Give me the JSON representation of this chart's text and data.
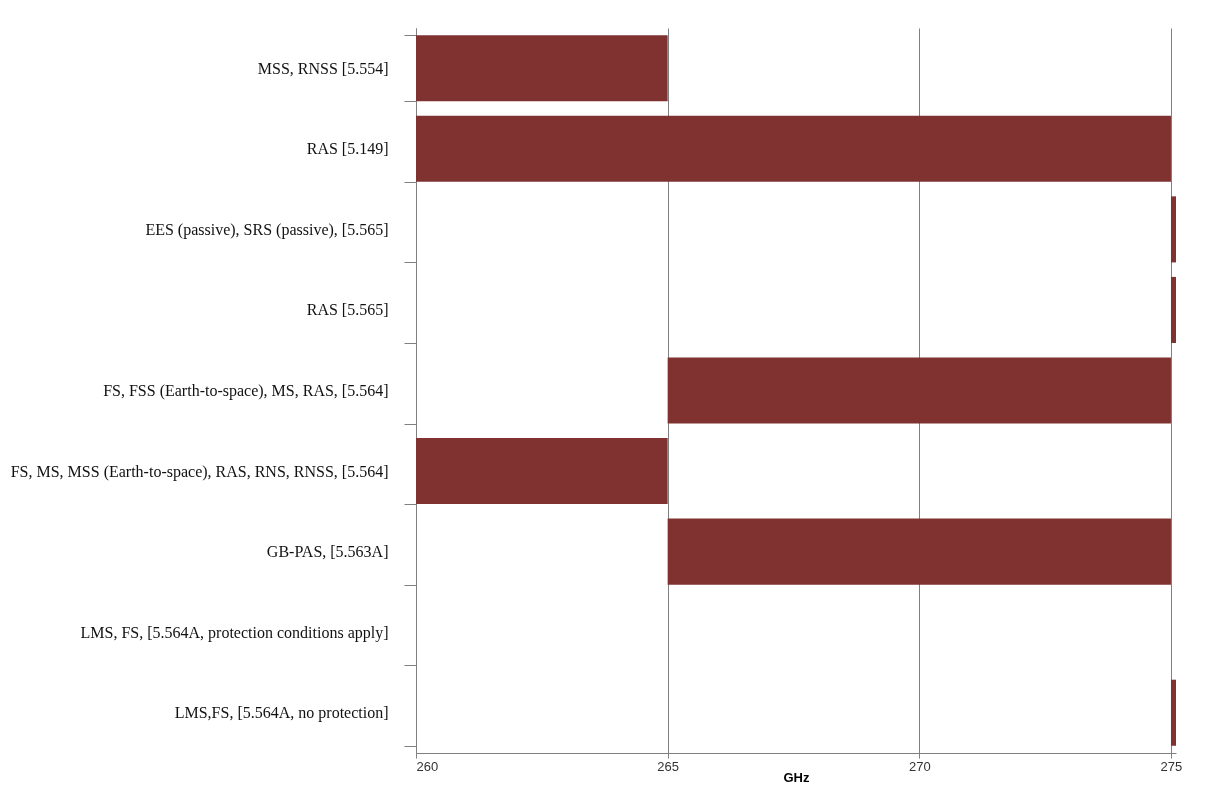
{
  "chart_data": {
    "type": "bar",
    "orientation": "horizontal",
    "xlabel": "GHz",
    "categories": [
      "MSS, RNSS [5.554]",
      "RAS [5.149]",
      "EES (passive), SRS (passive), [5.565]",
      "RAS [5.565]",
      "FS, FSS (Earth-to-space), MS, RAS, [5.564]",
      "FS, MS, MSS (Earth-to-space), RAS, RNS, RNSS, [5.564]",
      "GB-PAS, [5.563A]",
      "LMS, FS, [5.564A, protection conditions apply]",
      "LMS,FS, [5.564A, no protection]"
    ],
    "base": [
      260,
      260,
      275,
      275,
      265,
      260,
      265,
      null,
      275
    ],
    "values": [
      5,
      15,
      0.1,
      0.1,
      10,
      5,
      10,
      null,
      0.1
    ],
    "color": "#7f3230",
    "xlim": [
      260,
      275.1
    ],
    "xticks": [
      260,
      265,
      270,
      275
    ],
    "grid": "x"
  }
}
